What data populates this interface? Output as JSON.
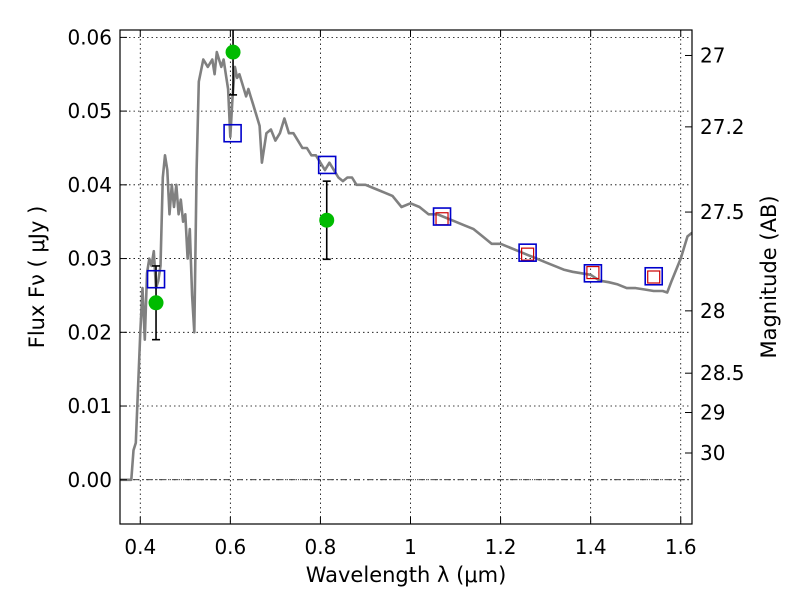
{
  "chart_data": {
    "type": "scatter",
    "xlabel": "Wavelength  λ (μm)",
    "ylabel": "Flux  Fν  ( μJy )",
    "y2label": "Magnitude (AB)",
    "xlim": [
      0.355,
      1.625
    ],
    "ylim": [
      -0.006,
      0.061
    ],
    "grid": true,
    "x_ticks": [
      {
        "value": 0.4,
        "label": "0.4"
      },
      {
        "value": 0.6,
        "label": "0.6"
      },
      {
        "value": 0.8,
        "label": "0.8"
      },
      {
        "value": 1.0,
        "label": "1"
      },
      {
        "value": 1.2,
        "label": "1.2"
      },
      {
        "value": 1.4,
        "label": "1.4"
      },
      {
        "value": 1.6,
        "label": "1.6"
      }
    ],
    "y_ticks": [
      {
        "value": 0.0,
        "label": "0.00"
      },
      {
        "value": 0.01,
        "label": "0.01"
      },
      {
        "value": 0.02,
        "label": "0.02"
      },
      {
        "value": 0.03,
        "label": "0.03"
      },
      {
        "value": 0.04,
        "label": "0.04"
      },
      {
        "value": 0.05,
        "label": "0.05"
      },
      {
        "value": 0.06,
        "label": "0.06"
      }
    ],
    "y2_ticks": [
      {
        "mag": 27.0,
        "label": "27"
      },
      {
        "mag": 27.2,
        "label": "27.2"
      },
      {
        "mag": 27.5,
        "label": "27.5"
      },
      {
        "mag": 28.0,
        "label": "28"
      },
      {
        "mag": 28.5,
        "label": "28.5"
      },
      {
        "mag": 29.0,
        "label": "29"
      },
      {
        "mag": 30.0,
        "label": "30"
      }
    ],
    "model_sed": {
      "color": "#808080",
      "points": [
        [
          0.355,
          0.0
        ],
        [
          0.37,
          0.0
        ],
        [
          0.38,
          0.0
        ],
        [
          0.385,
          0.004
        ],
        [
          0.39,
          0.005
        ],
        [
          0.4,
          0.02
        ],
        [
          0.405,
          0.026
        ],
        [
          0.41,
          0.019
        ],
        [
          0.415,
          0.028
        ],
        [
          0.42,
          0.03
        ],
        [
          0.425,
          0.029
        ],
        [
          0.43,
          0.031
        ],
        [
          0.435,
          0.026
        ],
        [
          0.44,
          0.027
        ],
        [
          0.445,
          0.029
        ],
        [
          0.45,
          0.041
        ],
        [
          0.455,
          0.044
        ],
        [
          0.46,
          0.042
        ],
        [
          0.465,
          0.036
        ],
        [
          0.47,
          0.04
        ],
        [
          0.475,
          0.037
        ],
        [
          0.48,
          0.04
        ],
        [
          0.485,
          0.036
        ],
        [
          0.49,
          0.038
        ],
        [
          0.495,
          0.035
        ],
        [
          0.5,
          0.036
        ],
        [
          0.505,
          0.03
        ],
        [
          0.51,
          0.034
        ],
        [
          0.515,
          0.025
        ],
        [
          0.52,
          0.02
        ],
        [
          0.525,
          0.042
        ],
        [
          0.53,
          0.054
        ],
        [
          0.54,
          0.057
        ],
        [
          0.55,
          0.056
        ],
        [
          0.56,
          0.057
        ],
        [
          0.565,
          0.055
        ],
        [
          0.57,
          0.058
        ],
        [
          0.58,
          0.056
        ],
        [
          0.585,
          0.057
        ],
        [
          0.59,
          0.055
        ],
        [
          0.595,
          0.053
        ],
        [
          0.6,
          0.0465
        ],
        [
          0.605,
          0.052
        ],
        [
          0.61,
          0.056
        ],
        [
          0.615,
          0.0545
        ],
        [
          0.62,
          0.055
        ],
        [
          0.63,
          0.053
        ],
        [
          0.635,
          0.052
        ],
        [
          0.64,
          0.053
        ],
        [
          0.645,
          0.052
        ],
        [
          0.65,
          0.051
        ],
        [
          0.66,
          0.049
        ],
        [
          0.665,
          0.048
        ],
        [
          0.67,
          0.043
        ],
        [
          0.68,
          0.047
        ],
        [
          0.69,
          0.0475
        ],
        [
          0.7,
          0.046
        ],
        [
          0.71,
          0.047
        ],
        [
          0.72,
          0.049
        ],
        [
          0.73,
          0.047
        ],
        [
          0.74,
          0.047
        ],
        [
          0.75,
          0.046
        ],
        [
          0.76,
          0.045
        ],
        [
          0.77,
          0.045
        ],
        [
          0.78,
          0.044
        ],
        [
          0.79,
          0.044
        ],
        [
          0.8,
          0.043
        ],
        [
          0.81,
          0.042
        ],
        [
          0.82,
          0.043
        ],
        [
          0.83,
          0.042
        ],
        [
          0.84,
          0.041
        ],
        [
          0.85,
          0.0405
        ],
        [
          0.86,
          0.041
        ],
        [
          0.87,
          0.041
        ],
        [
          0.88,
          0.04
        ],
        [
          0.9,
          0.04
        ],
        [
          0.92,
          0.0395
        ],
        [
          0.94,
          0.039
        ],
        [
          0.96,
          0.0385
        ],
        [
          0.98,
          0.037
        ],
        [
          1.0,
          0.0375
        ],
        [
          1.02,
          0.037
        ],
        [
          1.04,
          0.036
        ],
        [
          1.06,
          0.036
        ],
        [
          1.08,
          0.0355
        ],
        [
          1.1,
          0.035
        ],
        [
          1.12,
          0.0345
        ],
        [
          1.14,
          0.034
        ],
        [
          1.16,
          0.033
        ],
        [
          1.18,
          0.032
        ],
        [
          1.2,
          0.032
        ],
        [
          1.22,
          0.0315
        ],
        [
          1.24,
          0.031
        ],
        [
          1.26,
          0.0305
        ],
        [
          1.28,
          0.03
        ],
        [
          1.3,
          0.0295
        ],
        [
          1.32,
          0.029
        ],
        [
          1.34,
          0.0285
        ],
        [
          1.36,
          0.0282
        ],
        [
          1.38,
          0.028
        ],
        [
          1.4,
          0.0278
        ],
        [
          1.42,
          0.027
        ],
        [
          1.44,
          0.0268
        ],
        [
          1.46,
          0.0265
        ],
        [
          1.48,
          0.026
        ],
        [
          1.5,
          0.026
        ],
        [
          1.52,
          0.0258
        ],
        [
          1.54,
          0.0256
        ],
        [
          1.56,
          0.0256
        ],
        [
          1.57,
          0.0254
        ],
        [
          1.58,
          0.027
        ],
        [
          1.6,
          0.03
        ],
        [
          1.615,
          0.033
        ],
        [
          1.625,
          0.0335
        ]
      ]
    },
    "model_broadband": {
      "color": "#0000cc",
      "points": [
        [
          0.435,
          0.0272
        ],
        [
          0.605,
          0.047
        ],
        [
          0.815,
          0.0427
        ],
        [
          1.07,
          0.0357
        ],
        [
          1.26,
          0.0308
        ],
        [
          1.405,
          0.028
        ],
        [
          1.54,
          0.0276
        ]
      ]
    },
    "red_squares": {
      "color": "#cc0000",
      "points": [
        [
          1.07,
          0.0354
        ],
        [
          1.26,
          0.0306
        ],
        [
          1.405,
          0.0281
        ],
        [
          1.54,
          0.0275
        ]
      ]
    },
    "observed": {
      "color": "#00bb00",
      "points": [
        {
          "x": 0.435,
          "y": 0.024,
          "err": 0.005
        },
        {
          "x": 0.606,
          "y": 0.058,
          "err": 0.0058
        },
        {
          "x": 0.814,
          "y": 0.0352,
          "err": 0.0053
        }
      ]
    }
  }
}
